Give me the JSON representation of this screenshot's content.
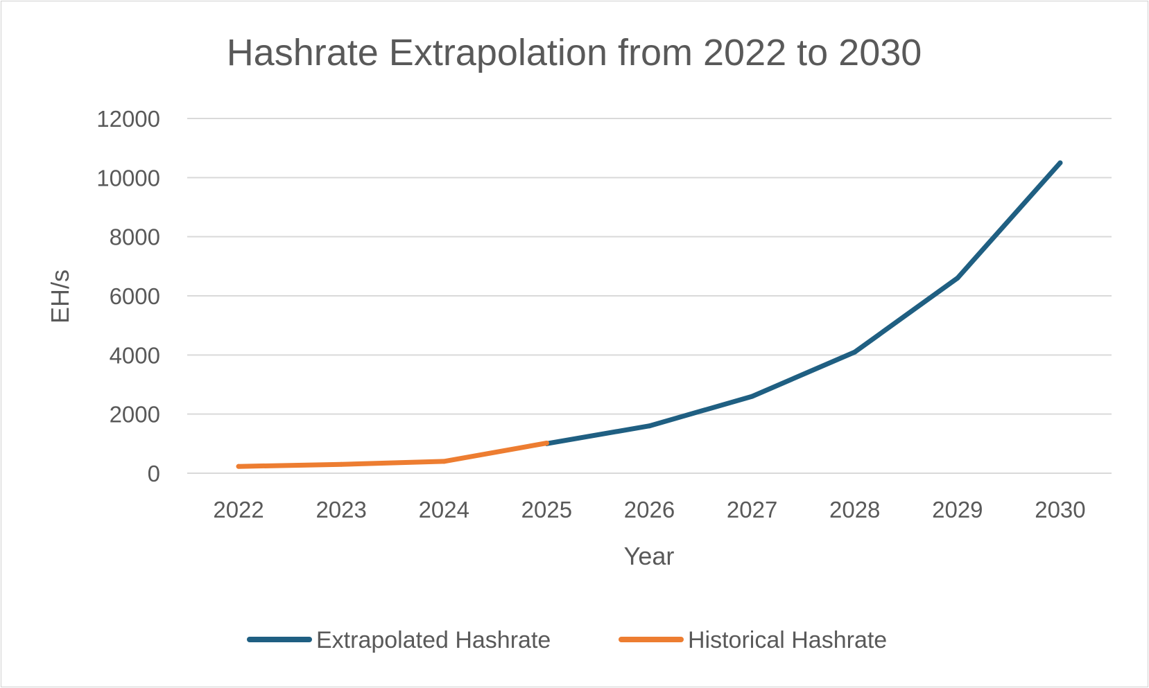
{
  "chart_data": {
    "type": "line",
    "title": "Hashrate Extrapolation from 2022 to 2030",
    "xlabel": "Year",
    "ylabel": "EH/s",
    "categories": [
      "2022",
      "2023",
      "2024",
      "2025",
      "2026",
      "2027",
      "2028",
      "2029",
      "2030"
    ],
    "ylim": [
      0,
      12000
    ],
    "yticks": [
      0,
      2000,
      4000,
      6000,
      8000,
      10000,
      12000
    ],
    "grid": true,
    "legend_position": "bottom",
    "series": [
      {
        "name": "Extrapolated Hashrate",
        "color": "#1f5f82",
        "values": [
          null,
          null,
          null,
          1000,
          1600,
          2600,
          4100,
          6600,
          10500
        ]
      },
      {
        "name": "Historical Hashrate",
        "color": "#ed7d31",
        "values": [
          230,
          300,
          400,
          1020,
          null,
          null,
          null,
          null,
          null
        ]
      }
    ]
  }
}
